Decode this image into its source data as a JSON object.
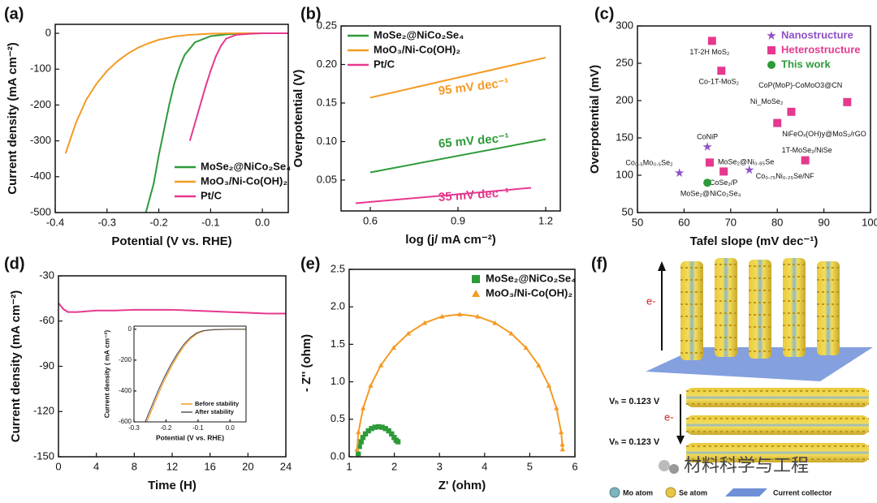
{
  "chart_data": [
    {
      "type": "line",
      "panel_label": "(a)",
      "x_label": "Potential (V vs. RHE)",
      "y_label": "Current density (mA cm⁻²)",
      "xlim": [
        -0.4,
        0.05
      ],
      "xticks": [
        -0.4,
        -0.3,
        -0.2,
        -0.1,
        {
          "value": 0,
          "label": "0.0"
        }
      ],
      "ylim": [
        -500,
        25
      ],
      "yticks": [
        -500,
        -400,
        -300,
        -200,
        -100,
        0
      ],
      "legend": "lower right",
      "series": [
        {
          "name": "MoSe₂@NiCo₂Se₄",
          "color": "#2e9a3a",
          "x": [
            -0.225,
            -0.21,
            -0.2,
            -0.19,
            -0.18,
            -0.17,
            -0.16,
            -0.15,
            -0.13,
            -0.1,
            -0.07,
            -0.04,
            0,
            0.05
          ],
          "values": [
            -500,
            -420,
            -340,
            -270,
            -200,
            -140,
            -95,
            -60,
            -25,
            -8,
            -3,
            -1,
            0,
            0
          ]
        },
        {
          "name": "MoO₃/Ni-Co(OH)₂",
          "color": "#f59a23",
          "x": [
            -0.38,
            -0.36,
            -0.34,
            -0.32,
            -0.3,
            -0.28,
            -0.26,
            -0.24,
            -0.22,
            -0.2,
            -0.17,
            -0.14,
            -0.1,
            -0.05,
            0,
            0.05
          ],
          "values": [
            -335,
            -250,
            -185,
            -140,
            -105,
            -78,
            -57,
            -40,
            -28,
            -18,
            -9,
            -4,
            -1,
            0,
            0,
            0
          ]
        },
        {
          "name": "Pt/C",
          "color": "#e6388f",
          "x": [
            -0.14,
            -0.13,
            -0.12,
            -0.11,
            -0.1,
            -0.09,
            -0.08,
            -0.07,
            -0.05,
            -0.02,
            0,
            0.05
          ],
          "values": [
            -300,
            -250,
            -200,
            -150,
            -105,
            -65,
            -35,
            -15,
            -4,
            -1,
            0,
            0
          ]
        }
      ]
    },
    {
      "type": "line",
      "panel_label": "(b)",
      "x_label": "log (j/ mA cm⁻²)",
      "y_label": "Overpotential (V)",
      "xlim": [
        0.5,
        1.25
      ],
      "xticks": [
        0.6,
        0.9,
        1.2
      ],
      "ylim": [
        0.01,
        0.25
      ],
      "yticks": [
        0.05,
        {
          "value": 0.1,
          "label": "0.10"
        },
        0.15,
        {
          "value": 0.2,
          "label": "0.20"
        },
        0.25
      ],
      "legend": "upper left",
      "series": [
        {
          "name": "MoSe₂@NiCo₂Se₄",
          "color": "#2e9a3a",
          "x": [
            0.6,
            1.2
          ],
          "values": [
            0.06,
            0.103
          ]
        },
        {
          "name": "MoO₃/Ni-Co(OH)₂",
          "color": "#f59a23",
          "x": [
            0.6,
            1.2
          ],
          "values": [
            0.157,
            0.209
          ]
        },
        {
          "name": "Pt/C",
          "color": "#e6388f",
          "x": [
            0.55,
            1.15
          ],
          "values": [
            0.02,
            0.04
          ]
        }
      ],
      "annotations": [
        {
          "text": "95 mV dec⁻¹",
          "color": "#f59a23"
        },
        {
          "text": "65 mV dec⁻¹",
          "color": "#2e9a3a"
        },
        {
          "text": "35 mV dec⁻¹",
          "color": "#e6388f"
        }
      ]
    },
    {
      "type": "scatter",
      "panel_label": "(c)",
      "x_label": "Tafel slope (mV dec⁻¹)",
      "y_label": "Overpotential (mV)",
      "xlim": [
        50,
        100
      ],
      "xticks": [
        50,
        60,
        70,
        80,
        90,
        100
      ],
      "ylim": [
        50,
        300
      ],
      "yticks": [
        50,
        100,
        150,
        200,
        250,
        300
      ],
      "legend": "upper right",
      "series": [
        {
          "name": "Nanostructure",
          "color": "#8e4fc6",
          "marker": "star",
          "x": [
            65,
            59,
            74
          ],
          "values": [
            138,
            103,
            107
          ],
          "labels": [
            "CoNiP",
            "Co₀.₅Mo₀.₅Se₂",
            "Co₀.₇₅Ni₀.₂₅Se/NF"
          ]
        },
        {
          "name": "Heterostructure",
          "color": "#e6388f",
          "marker": "square",
          "x": [
            66,
            68,
            95,
            83,
            80,
            86,
            65.5,
            68.5
          ],
          "values": [
            280,
            240,
            198,
            185,
            170,
            120,
            117,
            105
          ],
          "labels": [
            "1T-2H MoS₂",
            "Co-1T-MoS₂",
            "CoP(MoP)-CoMoO3@CN",
            "Ni_MoSe₂",
            "NiFeOₓ(OH)y@MoS₂/rGO",
            "1T-MoSe₂/NiSe",
            "MoSe₂@Ni₀.₈₅Se",
            "CoSe₂/P"
          ]
        },
        {
          "name": "This work",
          "color": "#2e9a3a",
          "marker": "circle",
          "x": [
            65
          ],
          "values": [
            90
          ],
          "labels": [
            "MoSe₂@NiCo₂Se₄"
          ]
        }
      ]
    },
    {
      "type": "line",
      "panel_label": "(d)",
      "x_label": "Time (H)",
      "y_label": "Current density (mA cm⁻²)",
      "xlim": [
        0,
        24
      ],
      "xticks": [
        0,
        4,
        8,
        12,
        16,
        20,
        24
      ],
      "ylim": [
        -150,
        -30
      ],
      "yticks": [
        -150,
        -120,
        -90,
        -60,
        -30
      ],
      "series": [
        {
          "color": "#e6388f",
          "x": [
            0,
            0.5,
            1,
            2,
            4,
            6,
            8,
            10,
            12,
            14,
            16,
            18,
            20,
            22,
            24
          ],
          "values": [
            -48,
            -52,
            -54,
            -54,
            -53,
            -53,
            -52.5,
            -52.5,
            -52.5,
            -53,
            -53.5,
            -54,
            -54.5,
            -55,
            -55
          ]
        }
      ]
    },
    {
      "type": "line",
      "x_label": "Potential (V vs. RHE)",
      "y_label": "Current density ( mA cm⁻²)",
      "xlim": [
        -0.3,
        0.05
      ],
      "xticks": [
        -0.3,
        -0.2,
        -0.1,
        {
          "value": 0,
          "label": "0.0"
        }
      ],
      "ylim": [
        -600,
        20
      ],
      "yticks": [
        -600,
        -400,
        -200,
        0
      ],
      "legend": "lower right",
      "series": [
        {
          "name": "Before stability",
          "color": "#f59a23",
          "x": [
            -0.26,
            -0.24,
            -0.22,
            -0.2,
            -0.18,
            -0.16,
            -0.14,
            -0.12,
            -0.1,
            -0.08,
            -0.05,
            0,
            0.05
          ],
          "values": [
            -600,
            -500,
            -400,
            -310,
            -230,
            -160,
            -100,
            -55,
            -25,
            -10,
            -3,
            0,
            0
          ]
        },
        {
          "name": "After stability",
          "color": "#555555",
          "x": [
            -0.265,
            -0.245,
            -0.225,
            -0.205,
            -0.185,
            -0.165,
            -0.145,
            -0.125,
            -0.105,
            -0.085,
            -0.055,
            0,
            0.05
          ],
          "values": [
            -600,
            -500,
            -400,
            -310,
            -230,
            -160,
            -100,
            -55,
            -25,
            -10,
            -3,
            0,
            0
          ]
        }
      ]
    },
    {
      "type": "scatter",
      "panel_label": "(e)",
      "x_label": "Z' (ohm)",
      "y_label": "- Z'' (ohm)",
      "xlim": [
        1,
        6
      ],
      "xticks": [
        1,
        2,
        3,
        4,
        5,
        6
      ],
      "ylim": [
        0,
        2.5
      ],
      "yticks": [
        {
          "value": 0,
          "label": "0.0"
        },
        0.5,
        {
          "value": 1,
          "label": "1.0"
        },
        1.5,
        {
          "value": 2,
          "label": "2.0"
        },
        2.5
      ],
      "legend": "upper right",
      "series": [
        {
          "name": "MoSe₂@NiCo₂Se₄",
          "color": "#2e9a3a",
          "marker": "square",
          "x": [
            1.202,
            1.227,
            1.265,
            1.305,
            1.36,
            1.425,
            1.495,
            1.572,
            1.65,
            1.728,
            1.805,
            1.875,
            1.94,
            1.995,
            2.04,
            2.08
          ],
          "values": [
            0.035,
            0.137,
            0.2,
            0.257,
            0.305,
            0.346,
            0.376,
            0.394,
            0.4,
            0.394,
            0.376,
            0.346,
            0.305,
            0.257,
            0.22,
            0.2
          ]
        },
        {
          "name": "MoO₃/Ni-Co(OH)₂",
          "color": "#f59a23",
          "marker": "triangle",
          "line": true,
          "x": [
            1.173,
            1.205,
            1.31,
            1.476,
            1.703,
            1.984,
            2.31,
            2.67,
            3.054,
            3.45,
            3.846,
            4.23,
            4.59,
            4.916,
            5.197,
            5.424,
            5.59,
            5.695,
            5.721,
            5.727
          ],
          "values": [
            0.099,
            0.33,
            0.65,
            0.95,
            1.221,
            1.455,
            1.645,
            1.785,
            1.871,
            1.9,
            1.871,
            1.785,
            1.645,
            1.455,
            1.221,
            0.95,
            0.65,
            0.33,
            0.166,
            0.099
          ]
        }
      ]
    }
  ],
  "diagram": {
    "panel_label": "(f)",
    "top_electron": "e-",
    "bottom_electron": "e-",
    "voltage_labels": [
      "Vₕ = 0.123 V",
      "Vₕ = 0.123 V"
    ],
    "legend": [
      "Mo atom",
      "Se atom",
      "Current collector"
    ]
  },
  "watermark": "材料科学与工程"
}
